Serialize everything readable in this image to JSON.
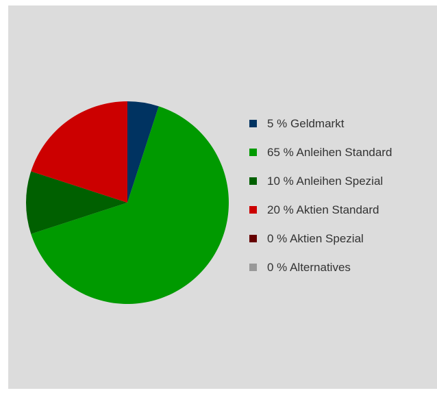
{
  "chart_data": {
    "type": "pie",
    "title": "",
    "slices": [
      {
        "label": "5 % Geldmarkt",
        "value": 5,
        "color": "#003361"
      },
      {
        "label": "65 % Anleihen Standard",
        "value": 65,
        "color": "#009a00"
      },
      {
        "label": "10 % Anleihen Spezial",
        "value": 10,
        "color": "#006000"
      },
      {
        "label": "20 % Aktien Standard",
        "value": 20,
        "color": "#cc0000"
      },
      {
        "label": "0 % Aktien Spezial",
        "value": 0,
        "color": "#660000"
      },
      {
        "label": "0 % Alternatives",
        "value": 0,
        "color": "#999999"
      }
    ],
    "legend_position": "right"
  }
}
